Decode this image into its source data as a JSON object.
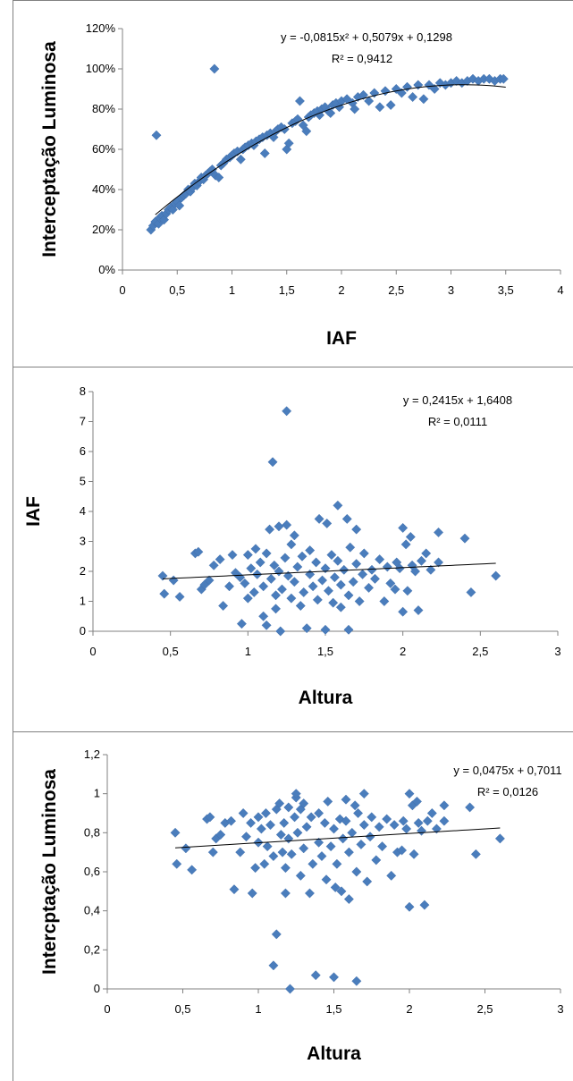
{
  "chart_data": [
    {
      "type": "scatter",
      "xlabel": "IAF",
      "ylabel": "Interceptação Luminosa",
      "xlim": [
        0,
        4
      ],
      "ylim": [
        0,
        1.2
      ],
      "x_ticks": [
        "0",
        "0,5",
        "1",
        "1,5",
        "2",
        "2,5",
        "3",
        "3,5",
        "4"
      ],
      "y_ticks": [
        "0%",
        "20%",
        "40%",
        "60%",
        "80%",
        "100%",
        "120%"
      ],
      "equation": "y = -0,0815x² + 0,5079x + 0,1298",
      "r_squared": "R² = 0,9412",
      "trendline": {
        "kind": "polynomial",
        "coefficients": [
          -0.0815,
          0.5079,
          0.1298
        ],
        "x_range": [
          0.3,
          3.5
        ]
      },
      "color": "#4a7dbc",
      "points": [
        [
          0.26,
          0.2
        ],
        [
          0.28,
          0.22
        ],
        [
          0.3,
          0.24
        ],
        [
          0.31,
          0.67
        ],
        [
          0.33,
          0.23
        ],
        [
          0.34,
          0.26
        ],
        [
          0.36,
          0.27
        ],
        [
          0.38,
          0.25
        ],
        [
          0.4,
          0.28
        ],
        [
          0.42,
          0.3
        ],
        [
          0.44,
          0.31
        ],
        [
          0.46,
          0.3
        ],
        [
          0.48,
          0.33
        ],
        [
          0.5,
          0.34
        ],
        [
          0.52,
          0.32
        ],
        [
          0.54,
          0.36
        ],
        [
          0.56,
          0.37
        ],
        [
          0.58,
          0.38
        ],
        [
          0.6,
          0.4
        ],
        [
          0.62,
          0.39
        ],
        [
          0.64,
          0.41
        ],
        [
          0.66,
          0.43
        ],
        [
          0.68,
          0.42
        ],
        [
          0.7,
          0.44
        ],
        [
          0.72,
          0.46
        ],
        [
          0.74,
          0.45
        ],
        [
          0.76,
          0.47
        ],
        [
          0.78,
          0.48
        ],
        [
          0.8,
          0.49
        ],
        [
          0.82,
          0.5
        ],
        [
          0.84,
          1.0
        ],
        [
          0.85,
          0.47
        ],
        [
          0.88,
          0.46
        ],
        [
          0.9,
          0.52
        ],
        [
          0.92,
          0.53
        ],
        [
          0.95,
          0.55
        ],
        [
          0.98,
          0.56
        ],
        [
          1.0,
          0.57
        ],
        [
          1.02,
          0.58
        ],
        [
          1.05,
          0.59
        ],
        [
          1.08,
          0.55
        ],
        [
          1.1,
          0.6
        ],
        [
          1.12,
          0.61
        ],
        [
          1.15,
          0.62
        ],
        [
          1.18,
          0.63
        ],
        [
          1.2,
          0.62
        ],
        [
          1.22,
          0.64
        ],
        [
          1.25,
          0.65
        ],
        [
          1.28,
          0.66
        ],
        [
          1.3,
          0.58
        ],
        [
          1.32,
          0.67
        ],
        [
          1.35,
          0.68
        ],
        [
          1.38,
          0.66
        ],
        [
          1.4,
          0.69
        ],
        [
          1.42,
          0.7
        ],
        [
          1.45,
          0.71
        ],
        [
          1.48,
          0.7
        ],
        [
          1.5,
          0.6
        ],
        [
          1.52,
          0.63
        ],
        [
          1.55,
          0.73
        ],
        [
          1.58,
          0.74
        ],
        [
          1.6,
          0.75
        ],
        [
          1.62,
          0.84
        ],
        [
          1.65,
          0.72
        ],
        [
          1.68,
          0.69
        ],
        [
          1.7,
          0.76
        ],
        [
          1.72,
          0.77
        ],
        [
          1.75,
          0.78
        ],
        [
          1.78,
          0.79
        ],
        [
          1.8,
          0.77
        ],
        [
          1.82,
          0.8
        ],
        [
          1.85,
          0.81
        ],
        [
          1.88,
          0.79
        ],
        [
          1.9,
          0.78
        ],
        [
          1.92,
          0.82
        ],
        [
          1.95,
          0.83
        ],
        [
          1.98,
          0.81
        ],
        [
          2.0,
          0.84
        ],
        [
          2.05,
          0.85
        ],
        [
          2.1,
          0.83
        ],
        [
          2.12,
          0.8
        ],
        [
          2.15,
          0.86
        ],
        [
          2.2,
          0.87
        ],
        [
          2.25,
          0.84
        ],
        [
          2.3,
          0.88
        ],
        [
          2.35,
          0.81
        ],
        [
          2.4,
          0.89
        ],
        [
          2.45,
          0.82
        ],
        [
          2.5,
          0.9
        ],
        [
          2.55,
          0.88
        ],
        [
          2.6,
          0.91
        ],
        [
          2.65,
          0.86
        ],
        [
          2.7,
          0.92
        ],
        [
          2.75,
          0.85
        ],
        [
          2.8,
          0.92
        ],
        [
          2.85,
          0.9
        ],
        [
          2.9,
          0.93
        ],
        [
          2.95,
          0.92
        ],
        [
          3.0,
          0.93
        ],
        [
          3.05,
          0.94
        ],
        [
          3.1,
          0.93
        ],
        [
          3.15,
          0.94
        ],
        [
          3.2,
          0.95
        ],
        [
          3.25,
          0.94
        ],
        [
          3.3,
          0.95
        ],
        [
          3.35,
          0.95
        ],
        [
          3.4,
          0.94
        ],
        [
          3.45,
          0.95
        ],
        [
          3.48,
          0.95
        ]
      ]
    },
    {
      "type": "scatter",
      "xlabel": "Altura",
      "ylabel": "IAF",
      "xlim": [
        0,
        3
      ],
      "ylim": [
        0,
        8
      ],
      "x_ticks": [
        "0",
        "0,5",
        "1",
        "1,5",
        "2",
        "2,5",
        "3"
      ],
      "y_ticks": [
        "0",
        "1",
        "2",
        "3",
        "4",
        "5",
        "6",
        "7",
        "8"
      ],
      "equation": "y = 0,2415x + 1,6408",
      "r_squared": "R² = 0,0111",
      "trendline": {
        "kind": "linear",
        "coefficients": [
          0.2415,
          1.6408
        ],
        "x_range": [
          0.45,
          2.6
        ]
      },
      "color": "#4a7dbc",
      "points": [
        [
          0.45,
          1.85
        ],
        [
          0.46,
          1.25
        ],
        [
          0.52,
          1.7
        ],
        [
          0.56,
          1.15
        ],
        [
          0.66,
          2.6
        ],
        [
          0.68,
          2.65
        ],
        [
          0.7,
          1.4
        ],
        [
          0.72,
          1.55
        ],
        [
          0.75,
          1.7
        ],
        [
          0.78,
          2.2
        ],
        [
          0.82,
          2.4
        ],
        [
          0.84,
          0.85
        ],
        [
          0.88,
          1.5
        ],
        [
          0.9,
          2.55
        ],
        [
          0.92,
          1.95
        ],
        [
          0.95,
          1.8
        ],
        [
          0.96,
          0.25
        ],
        [
          0.98,
          1.6
        ],
        [
          1.0,
          2.55
        ],
        [
          1.0,
          1.1
        ],
        [
          1.02,
          2.1
        ],
        [
          1.04,
          1.3
        ],
        [
          1.05,
          2.75
        ],
        [
          1.06,
          1.9
        ],
        [
          1.08,
          2.3
        ],
        [
          1.1,
          1.5
        ],
        [
          1.1,
          0.5
        ],
        [
          1.12,
          2.6
        ],
        [
          1.12,
          0.2
        ],
        [
          1.14,
          3.4
        ],
        [
          1.15,
          1.75
        ],
        [
          1.16,
          5.65
        ],
        [
          1.17,
          2.2
        ],
        [
          1.18,
          1.2
        ],
        [
          1.18,
          0.75
        ],
        [
          1.2,
          3.5
        ],
        [
          1.2,
          2.0
        ],
        [
          1.21,
          0.0
        ],
        [
          1.22,
          1.4
        ],
        [
          1.24,
          2.45
        ],
        [
          1.25,
          7.35
        ],
        [
          1.25,
          3.55
        ],
        [
          1.26,
          1.85
        ],
        [
          1.28,
          1.1
        ],
        [
          1.28,
          2.9
        ],
        [
          1.3,
          1.65
        ],
        [
          1.3,
          3.2
        ],
        [
          1.32,
          2.15
        ],
        [
          1.34,
          0.85
        ],
        [
          1.35,
          2.5
        ],
        [
          1.36,
          1.3
        ],
        [
          1.38,
          0.1
        ],
        [
          1.4,
          1.9
        ],
        [
          1.4,
          2.7
        ],
        [
          1.42,
          1.5
        ],
        [
          1.44,
          2.3
        ],
        [
          1.45,
          1.05
        ],
        [
          1.46,
          3.75
        ],
        [
          1.48,
          1.7
        ],
        [
          1.5,
          2.1
        ],
        [
          1.5,
          0.05
        ],
        [
          1.51,
          3.6
        ],
        [
          1.52,
          1.35
        ],
        [
          1.54,
          2.55
        ],
        [
          1.55,
          0.95
        ],
        [
          1.56,
          1.8
        ],
        [
          1.58,
          4.2
        ],
        [
          1.58,
          2.35
        ],
        [
          1.6,
          0.8
        ],
        [
          1.6,
          1.55
        ],
        [
          1.62,
          2.05
        ],
        [
          1.64,
          3.75
        ],
        [
          1.65,
          0.05
        ],
        [
          1.65,
          1.2
        ],
        [
          1.66,
          2.8
        ],
        [
          1.68,
          1.65
        ],
        [
          1.7,
          3.4
        ],
        [
          1.7,
          2.25
        ],
        [
          1.72,
          1.0
        ],
        [
          1.74,
          1.9
        ],
        [
          1.75,
          2.6
        ],
        [
          1.78,
          1.45
        ],
        [
          1.8,
          2.05
        ],
        [
          1.82,
          1.75
        ],
        [
          1.85,
          2.4
        ],
        [
          1.88,
          1.0
        ],
        [
          1.9,
          2.15
        ],
        [
          1.92,
          1.6
        ],
        [
          1.95,
          1.4
        ],
        [
          1.96,
          2.3
        ],
        [
          1.98,
          2.1
        ],
        [
          2.0,
          0.65
        ],
        [
          2.0,
          3.45
        ],
        [
          2.02,
          2.9
        ],
        [
          2.03,
          1.35
        ],
        [
          2.05,
          3.15
        ],
        [
          2.06,
          2.2
        ],
        [
          2.08,
          2.0
        ],
        [
          2.1,
          0.7
        ],
        [
          2.12,
          2.35
        ],
        [
          2.15,
          2.6
        ],
        [
          2.18,
          2.05
        ],
        [
          2.23,
          3.3
        ],
        [
          2.23,
          2.3
        ],
        [
          2.4,
          3.1
        ],
        [
          2.44,
          1.3
        ],
        [
          2.6,
          1.85
        ]
      ]
    },
    {
      "type": "scatter",
      "xlabel": "Altura",
      "ylabel": "Intercptação Luminosa",
      "xlim": [
        0,
        3
      ],
      "ylim": [
        0,
        1.2
      ],
      "x_ticks": [
        "0",
        "0,5",
        "1",
        "1,5",
        "2",
        "2,5",
        "3"
      ],
      "y_ticks": [
        "0",
        "0,2",
        "0,4",
        "0,6",
        "0,8",
        "1",
        "1,2"
      ],
      "equation": "y = 0,0475x + 0,7011",
      "r_squared": "R² = 0,0126",
      "trendline": {
        "kind": "linear",
        "coefficients": [
          0.0475,
          0.7011
        ],
        "x_range": [
          0.45,
          2.6
        ]
      },
      "color": "#4a7dbc",
      "points": [
        [
          0.45,
          0.8
        ],
        [
          0.46,
          0.64
        ],
        [
          0.52,
          0.72
        ],
        [
          0.56,
          0.61
        ],
        [
          0.66,
          0.87
        ],
        [
          0.68,
          0.88
        ],
        [
          0.7,
          0.7
        ],
        [
          0.72,
          0.77
        ],
        [
          0.75,
          0.79
        ],
        [
          0.78,
          0.85
        ],
        [
          0.82,
          0.86
        ],
        [
          0.84,
          0.51
        ],
        [
          0.88,
          0.7
        ],
        [
          0.9,
          0.9
        ],
        [
          0.92,
          0.78
        ],
        [
          0.95,
          0.85
        ],
        [
          0.96,
          0.49
        ],
        [
          0.98,
          0.62
        ],
        [
          1.0,
          0.88
        ],
        [
          1.0,
          0.75
        ],
        [
          1.02,
          0.82
        ],
        [
          1.04,
          0.64
        ],
        [
          1.05,
          0.9
        ],
        [
          1.06,
          0.73
        ],
        [
          1.08,
          0.84
        ],
        [
          1.1,
          0.68
        ],
        [
          1.1,
          0.12
        ],
        [
          1.12,
          0.92
        ],
        [
          1.12,
          0.28
        ],
        [
          1.14,
          0.95
        ],
        [
          1.15,
          0.79
        ],
        [
          1.16,
          0.7
        ],
        [
          1.17,
          0.85
        ],
        [
          1.18,
          0.62
        ],
        [
          1.18,
          0.49
        ],
        [
          1.2,
          0.93
        ],
        [
          1.2,
          0.77
        ],
        [
          1.21,
          0.0
        ],
        [
          1.22,
          0.69
        ],
        [
          1.24,
          0.88
        ],
        [
          1.25,
          0.98
        ],
        [
          1.25,
          1.0
        ],
        [
          1.26,
          0.8
        ],
        [
          1.28,
          0.58
        ],
        [
          1.28,
          0.92
        ],
        [
          1.3,
          0.72
        ],
        [
          1.3,
          0.95
        ],
        [
          1.32,
          0.83
        ],
        [
          1.34,
          0.49
        ],
        [
          1.35,
          0.88
        ],
        [
          1.36,
          0.64
        ],
        [
          1.38,
          0.07
        ],
        [
          1.4,
          0.75
        ],
        [
          1.4,
          0.9
        ],
        [
          1.42,
          0.68
        ],
        [
          1.44,
          0.85
        ],
        [
          1.45,
          0.56
        ],
        [
          1.46,
          0.96
        ],
        [
          1.48,
          0.73
        ],
        [
          1.5,
          0.82
        ],
        [
          1.5,
          0.06
        ],
        [
          1.51,
          0.52
        ],
        [
          1.52,
          0.64
        ],
        [
          1.54,
          0.87
        ],
        [
          1.55,
          0.5
        ],
        [
          1.56,
          0.77
        ],
        [
          1.58,
          0.97
        ],
        [
          1.58,
          0.86
        ],
        [
          1.6,
          0.46
        ],
        [
          1.6,
          0.7
        ],
        [
          1.62,
          0.8
        ],
        [
          1.64,
          0.94
        ],
        [
          1.65,
          0.04
        ],
        [
          1.65,
          0.6
        ],
        [
          1.66,
          0.9
        ],
        [
          1.68,
          0.74
        ],
        [
          1.7,
          1.0
        ],
        [
          1.7,
          0.84
        ],
        [
          1.72,
          0.55
        ],
        [
          1.74,
          0.78
        ],
        [
          1.75,
          0.88
        ],
        [
          1.78,
          0.66
        ],
        [
          1.8,
          0.83
        ],
        [
          1.82,
          0.73
        ],
        [
          1.85,
          0.87
        ],
        [
          1.88,
          0.58
        ],
        [
          1.9,
          0.84
        ],
        [
          1.92,
          0.7
        ],
        [
          1.95,
          0.71
        ],
        [
          1.96,
          0.86
        ],
        [
          1.98,
          0.82
        ],
        [
          2.0,
          0.42
        ],
        [
          2.0,
          1.0
        ],
        [
          2.02,
          0.94
        ],
        [
          2.03,
          0.69
        ],
        [
          2.05,
          0.96
        ],
        [
          2.06,
          0.85
        ],
        [
          2.08,
          0.81
        ],
        [
          2.1,
          0.43
        ],
        [
          2.12,
          0.86
        ],
        [
          2.15,
          0.9
        ],
        [
          2.18,
          0.82
        ],
        [
          2.23,
          0.94
        ],
        [
          2.23,
          0.86
        ],
        [
          2.4,
          0.93
        ],
        [
          2.44,
          0.69
        ],
        [
          2.6,
          0.77
        ]
      ]
    }
  ]
}
